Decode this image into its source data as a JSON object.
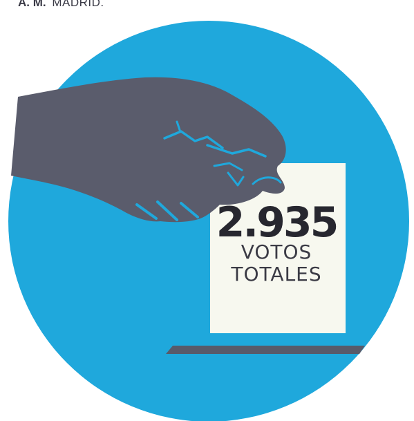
{
  "byline": {
    "initials": "A. M.",
    "city": "MADRID."
  },
  "graphic": {
    "icon": "ballot-box-hand-icon",
    "colors": {
      "circle": "#1fa8dc",
      "hand": "#5a5c6c",
      "ballot": "#f7f8ef",
      "slot": "#585a6a",
      "text": "#27272f"
    }
  },
  "ballot": {
    "number": "2.935",
    "line1": "VOTOS",
    "line2": "TOTALES"
  }
}
